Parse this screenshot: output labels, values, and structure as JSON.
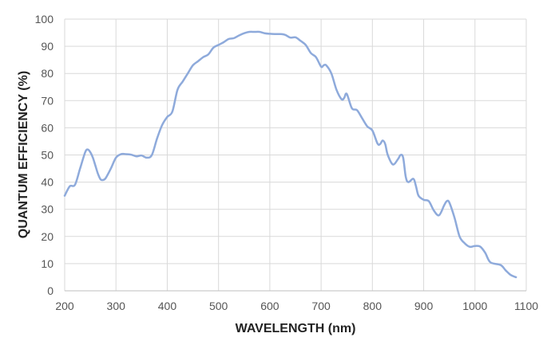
{
  "chart_data": {
    "type": "line",
    "title": "",
    "xlabel": "WAVELENGTH (nm)",
    "ylabel": "QUANTUM EFFICIENCY (%)",
    "xlim": [
      200,
      1100
    ],
    "ylim": [
      0,
      100
    ],
    "xticks": [
      200,
      300,
      400,
      500,
      600,
      700,
      800,
      900,
      1000,
      1100
    ],
    "yticks": [
      0,
      10,
      20,
      30,
      40,
      50,
      60,
      70,
      80,
      90,
      100
    ],
    "grid": "vertical and horizontal",
    "legend": "none",
    "series": [
      {
        "color": "#8eaadb",
        "x": [
          200,
          210,
          220,
          230,
          240,
          245,
          250,
          255,
          260,
          265,
          270,
          275,
          280,
          290,
          300,
          310,
          320,
          330,
          340,
          350,
          360,
          370,
          380,
          390,
          400,
          410,
          420,
          430,
          440,
          450,
          460,
          470,
          480,
          490,
          500,
          510,
          520,
          530,
          540,
          550,
          560,
          570,
          580,
          590,
          600,
          610,
          620,
          630,
          640,
          650,
          660,
          670,
          680,
          690,
          700,
          705,
          710,
          720,
          730,
          740,
          745,
          750,
          760,
          770,
          780,
          790,
          800,
          810,
          815,
          820,
          825,
          830,
          840,
          850,
          855,
          860,
          865,
          870,
          880,
          885,
          890,
          900,
          910,
          920,
          930,
          940,
          945,
          950,
          960,
          970,
          980,
          990,
          1000,
          1010,
          1020,
          1030,
          1050,
          1060,
          1070,
          1080
        ],
        "y": [
          35,
          38.5,
          39,
          45,
          51,
          52,
          51,
          49,
          46,
          43,
          41,
          40.8,
          41.5,
          45,
          49,
          50.3,
          50.3,
          50.1,
          49.5,
          49.8,
          49,
          50,
          56,
          61,
          64,
          66,
          74,
          77,
          80,
          83,
          84.5,
          86,
          87,
          89.5,
          90.5,
          91.5,
          92.7,
          93,
          94,
          94.8,
          95.3,
          95.3,
          95.3,
          94.8,
          94.6,
          94.5,
          94.5,
          94.2,
          93.2,
          93.3,
          92,
          90.5,
          87.5,
          86,
          82.5,
          83,
          83,
          80,
          74,
          70.5,
          71,
          72.5,
          67.2,
          66.5,
          63.5,
          60.5,
          59,
          54.2,
          54,
          55.3,
          54,
          50,
          46.5,
          48.5,
          50,
          49,
          42,
          40,
          41.2,
          38.5,
          35,
          33.5,
          33,
          29.5,
          27.8,
          31.5,
          33,
          32.5,
          27,
          20,
          17.5,
          16.2,
          16.5,
          16.3,
          14,
          10.5,
          9.5,
          7.5,
          5.8,
          5
        ]
      }
    ]
  }
}
